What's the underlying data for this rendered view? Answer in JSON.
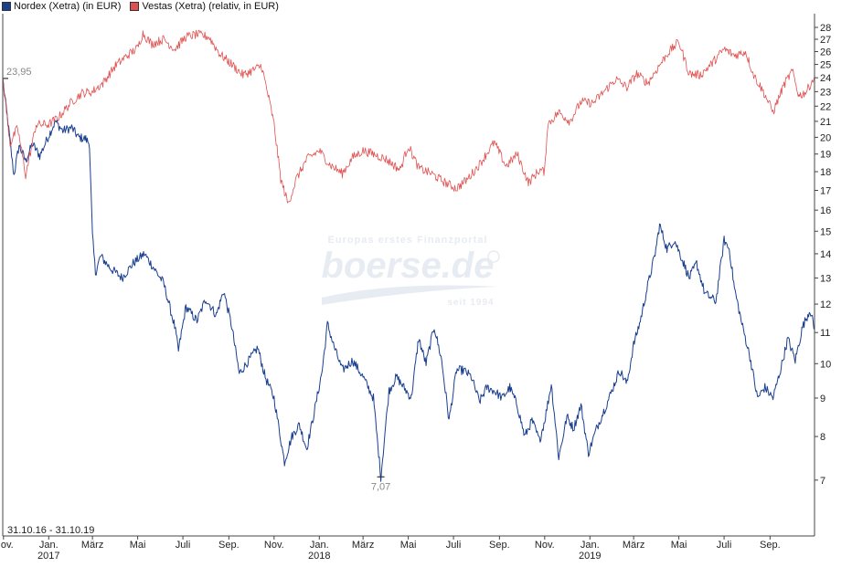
{
  "chart_data": {
    "type": "line",
    "period_label": "31.10.16 - 31.10.19",
    "y_axis": {
      "scale": "log",
      "ylim": [
        5.9,
        29.2
      ],
      "ticks": [
        7,
        8,
        9,
        10,
        11,
        12,
        13,
        14,
        15,
        16,
        17,
        18,
        19,
        20,
        21,
        22,
        23,
        24,
        25,
        26,
        27,
        28
      ]
    },
    "x_axis": {
      "range": [
        "2016-10-31",
        "2019-10-31"
      ],
      "ticks": [
        {
          "date": "2016-11-01",
          "label": "Nov."
        },
        {
          "date": "2017-01-01",
          "label": "Jan.",
          "year": "2017"
        },
        {
          "date": "2017-03-01",
          "label": "März"
        },
        {
          "date": "2017-05-01",
          "label": "Mai"
        },
        {
          "date": "2017-07-01",
          "label": "Juli"
        },
        {
          "date": "2017-09-01",
          "label": "Sep."
        },
        {
          "date": "2017-11-01",
          "label": "Nov."
        },
        {
          "date": "2018-01-01",
          "label": "Jan.",
          "year": "2018"
        },
        {
          "date": "2018-03-01",
          "label": "März"
        },
        {
          "date": "2018-05-01",
          "label": "Mai"
        },
        {
          "date": "2018-07-01",
          "label": "Juli"
        },
        {
          "date": "2018-09-01",
          "label": "Sep."
        },
        {
          "date": "2018-11-01",
          "label": "Nov."
        },
        {
          "date": "2019-01-01",
          "label": "Jan.",
          "year": "2019"
        },
        {
          "date": "2019-03-01",
          "label": "März"
        },
        {
          "date": "2019-05-01",
          "label": "Mai"
        },
        {
          "date": "2019-07-01",
          "label": "Juli"
        },
        {
          "date": "2019-09-01",
          "label": "Sep."
        }
      ]
    },
    "series": [
      {
        "name": "Nordex (Xetra) (in EUR)",
        "color": "#1a3f8f",
        "points": [
          [
            "2016-10-31",
            23.95
          ],
          [
            "2016-11-08",
            20.5
          ],
          [
            "2016-11-15",
            17.8
          ],
          [
            "2016-11-22",
            19.5
          ],
          [
            "2016-12-01",
            18.6
          ],
          [
            "2016-12-10",
            19.6
          ],
          [
            "2016-12-20",
            18.9
          ],
          [
            "2017-01-01",
            20.1
          ],
          [
            "2017-01-10",
            21.0
          ],
          [
            "2017-01-20",
            20.4
          ],
          [
            "2017-02-01",
            20.6
          ],
          [
            "2017-02-10",
            20.0
          ],
          [
            "2017-02-20",
            19.9
          ],
          [
            "2017-02-25",
            19.6
          ],
          [
            "2017-03-01",
            14.8
          ],
          [
            "2017-03-05",
            13.2
          ],
          [
            "2017-03-12",
            13.9
          ],
          [
            "2017-03-25",
            13.4
          ],
          [
            "2017-04-10",
            13.0
          ],
          [
            "2017-04-25",
            13.6
          ],
          [
            "2017-05-10",
            14.0
          ],
          [
            "2017-05-25",
            13.3
          ],
          [
            "2017-06-05",
            12.8
          ],
          [
            "2017-06-20",
            11.2
          ],
          [
            "2017-06-25",
            10.4
          ],
          [
            "2017-07-05",
            11.9
          ],
          [
            "2017-07-20",
            11.4
          ],
          [
            "2017-08-01",
            12.2
          ],
          [
            "2017-08-15",
            11.6
          ],
          [
            "2017-08-25",
            12.5
          ],
          [
            "2017-09-05",
            11.2
          ],
          [
            "2017-09-15",
            9.7
          ],
          [
            "2017-10-01",
            10.2
          ],
          [
            "2017-10-10",
            10.5
          ],
          [
            "2017-10-20",
            9.6
          ],
          [
            "2017-11-01",
            9.0
          ],
          [
            "2017-11-15",
            7.4
          ],
          [
            "2017-11-25",
            8.0
          ],
          [
            "2017-12-05",
            8.3
          ],
          [
            "2017-12-15",
            7.7
          ],
          [
            "2017-12-25",
            8.6
          ],
          [
            "2018-01-05",
            9.8
          ],
          [
            "2018-01-12",
            11.3
          ],
          [
            "2018-01-20",
            10.6
          ],
          [
            "2018-02-01",
            9.8
          ],
          [
            "2018-02-15",
            10.1
          ],
          [
            "2018-03-01",
            9.6
          ],
          [
            "2018-03-15",
            9.0
          ],
          [
            "2018-03-25",
            7.07
          ],
          [
            "2018-04-05",
            9.2
          ],
          [
            "2018-04-15",
            9.6
          ],
          [
            "2018-04-25",
            9.3
          ],
          [
            "2018-05-05",
            9.0
          ],
          [
            "2018-05-15",
            10.8
          ],
          [
            "2018-05-25",
            10.0
          ],
          [
            "2018-06-05",
            11.2
          ],
          [
            "2018-06-15",
            10.1
          ],
          [
            "2018-06-25",
            8.4
          ],
          [
            "2018-07-05",
            9.8
          ],
          [
            "2018-07-15",
            9.8
          ],
          [
            "2018-07-25",
            9.6
          ],
          [
            "2018-08-05",
            8.9
          ],
          [
            "2018-08-15",
            9.3
          ],
          [
            "2018-08-25",
            9.2
          ],
          [
            "2018-09-05",
            9.0
          ],
          [
            "2018-09-15",
            9.3
          ],
          [
            "2018-09-25",
            8.8
          ],
          [
            "2018-10-05",
            8.0
          ],
          [
            "2018-10-15",
            8.4
          ],
          [
            "2018-10-25",
            7.9
          ],
          [
            "2018-11-01",
            8.4
          ],
          [
            "2018-11-10",
            9.4
          ],
          [
            "2018-11-20",
            7.5
          ],
          [
            "2018-12-01",
            8.5
          ],
          [
            "2018-12-10",
            8.2
          ],
          [
            "2018-12-20",
            8.8
          ],
          [
            "2018-12-30",
            7.6
          ],
          [
            "2019-01-10",
            8.2
          ],
          [
            "2019-01-25",
            8.9
          ],
          [
            "2019-02-10",
            9.8
          ],
          [
            "2019-02-20",
            9.4
          ],
          [
            "2019-03-01",
            10.6
          ],
          [
            "2019-03-10",
            11.4
          ],
          [
            "2019-03-20",
            12.7
          ],
          [
            "2019-03-30",
            14.0
          ],
          [
            "2019-04-05",
            15.3
          ],
          [
            "2019-04-15",
            14.2
          ],
          [
            "2019-04-25",
            14.6
          ],
          [
            "2019-05-05",
            13.8
          ],
          [
            "2019-05-15",
            13.0
          ],
          [
            "2019-05-25",
            13.6
          ],
          [
            "2019-06-05",
            12.4
          ],
          [
            "2019-06-20",
            12.1
          ],
          [
            "2019-07-01",
            14.6
          ],
          [
            "2019-07-08",
            14.2
          ],
          [
            "2019-07-15",
            12.6
          ],
          [
            "2019-07-25",
            11.3
          ],
          [
            "2019-08-05",
            10.2
          ],
          [
            "2019-08-15",
            9.0
          ],
          [
            "2019-08-25",
            9.3
          ],
          [
            "2019-09-05",
            9.0
          ],
          [
            "2019-09-15",
            9.8
          ],
          [
            "2019-09-25",
            10.8
          ],
          [
            "2019-10-05",
            10.1
          ],
          [
            "2019-10-15",
            11.2
          ],
          [
            "2019-10-25",
            11.8
          ],
          [
            "2019-10-31",
            11.1
          ]
        ]
      },
      {
        "name": "Vestas (Xetra) (relativ, in EUR)",
        "color": "#e05050",
        "points": [
          [
            "2016-10-31",
            23.95
          ],
          [
            "2016-11-10",
            19.6
          ],
          [
            "2016-11-20",
            20.6
          ],
          [
            "2016-12-01",
            17.8
          ],
          [
            "2016-12-15",
            20.8
          ],
          [
            "2017-01-01",
            20.8
          ],
          [
            "2017-01-15",
            21.3
          ],
          [
            "2017-02-01",
            22.3
          ],
          [
            "2017-02-15",
            22.9
          ],
          [
            "2017-03-01",
            23.0
          ],
          [
            "2017-03-15",
            23.6
          ],
          [
            "2017-04-01",
            24.9
          ],
          [
            "2017-04-15",
            25.6
          ],
          [
            "2017-05-01",
            26.3
          ],
          [
            "2017-05-08",
            27.5
          ],
          [
            "2017-05-20",
            26.6
          ],
          [
            "2017-06-05",
            27.0
          ],
          [
            "2017-06-20",
            26.2
          ],
          [
            "2017-07-05",
            27.2
          ],
          [
            "2017-07-20",
            27.4
          ],
          [
            "2017-08-05",
            27.2
          ],
          [
            "2017-08-20",
            25.8
          ],
          [
            "2017-09-05",
            25.0
          ],
          [
            "2017-09-20",
            24.2
          ],
          [
            "2017-10-05",
            24.6
          ],
          [
            "2017-10-15",
            24.9
          ],
          [
            "2017-10-25",
            22.5
          ],
          [
            "2017-11-01",
            20.8
          ],
          [
            "2017-11-10",
            17.6
          ],
          [
            "2017-11-20",
            16.3
          ],
          [
            "2017-12-01",
            17.6
          ],
          [
            "2017-12-15",
            18.7
          ],
          [
            "2018-01-01",
            19.2
          ],
          [
            "2018-01-15",
            18.4
          ],
          [
            "2018-02-01",
            17.9
          ],
          [
            "2018-02-15",
            18.8
          ],
          [
            "2018-03-01",
            19.2
          ],
          [
            "2018-03-15",
            19.0
          ],
          [
            "2018-04-01",
            18.7
          ],
          [
            "2018-04-20",
            18.1
          ],
          [
            "2018-05-01",
            19.5
          ],
          [
            "2018-05-15",
            18.2
          ],
          [
            "2018-06-01",
            17.9
          ],
          [
            "2018-06-20",
            17.4
          ],
          [
            "2018-07-05",
            17.1
          ],
          [
            "2018-07-20",
            17.6
          ],
          [
            "2018-08-05",
            18.4
          ],
          [
            "2018-08-25",
            19.7
          ],
          [
            "2018-09-10",
            18.3
          ],
          [
            "2018-09-25",
            19.0
          ],
          [
            "2018-10-10",
            17.4
          ],
          [
            "2018-10-25",
            18.1
          ],
          [
            "2018-11-01",
            18.0
          ],
          [
            "2018-11-05",
            20.8
          ],
          [
            "2018-11-20",
            21.6
          ],
          [
            "2018-12-05",
            21.0
          ],
          [
            "2018-12-20",
            22.3
          ],
          [
            "2019-01-05",
            22.2
          ],
          [
            "2019-01-20",
            23.0
          ],
          [
            "2019-02-05",
            23.9
          ],
          [
            "2019-02-20",
            23.3
          ],
          [
            "2019-03-05",
            24.3
          ],
          [
            "2019-03-20",
            23.6
          ],
          [
            "2019-04-01",
            24.6
          ],
          [
            "2019-04-15",
            25.8
          ],
          [
            "2019-05-01",
            26.8
          ],
          [
            "2019-05-15",
            24.3
          ],
          [
            "2019-05-30",
            24.2
          ],
          [
            "2019-06-15",
            25.1
          ],
          [
            "2019-07-01",
            26.2
          ],
          [
            "2019-07-15",
            25.7
          ],
          [
            "2019-07-30",
            26.0
          ],
          [
            "2019-08-10",
            24.2
          ],
          [
            "2019-08-25",
            22.8
          ],
          [
            "2019-09-05",
            21.6
          ],
          [
            "2019-09-20",
            23.5
          ],
          [
            "2019-10-01",
            24.5
          ],
          [
            "2019-10-10",
            22.7
          ],
          [
            "2019-10-20",
            23.0
          ],
          [
            "2019-10-31",
            24.1
          ]
        ]
      }
    ],
    "annotations": [
      {
        "text": "23,95",
        "date": "2016-10-31",
        "value": 23.95,
        "kind": "start"
      },
      {
        "text": "7,07",
        "date": "2018-03-25",
        "value": 7.07,
        "kind": "low"
      }
    ],
    "watermark": {
      "line1": "Europas erstes Finanzportal",
      "brand": "boerse.de",
      "line2": "seit 1994"
    }
  }
}
